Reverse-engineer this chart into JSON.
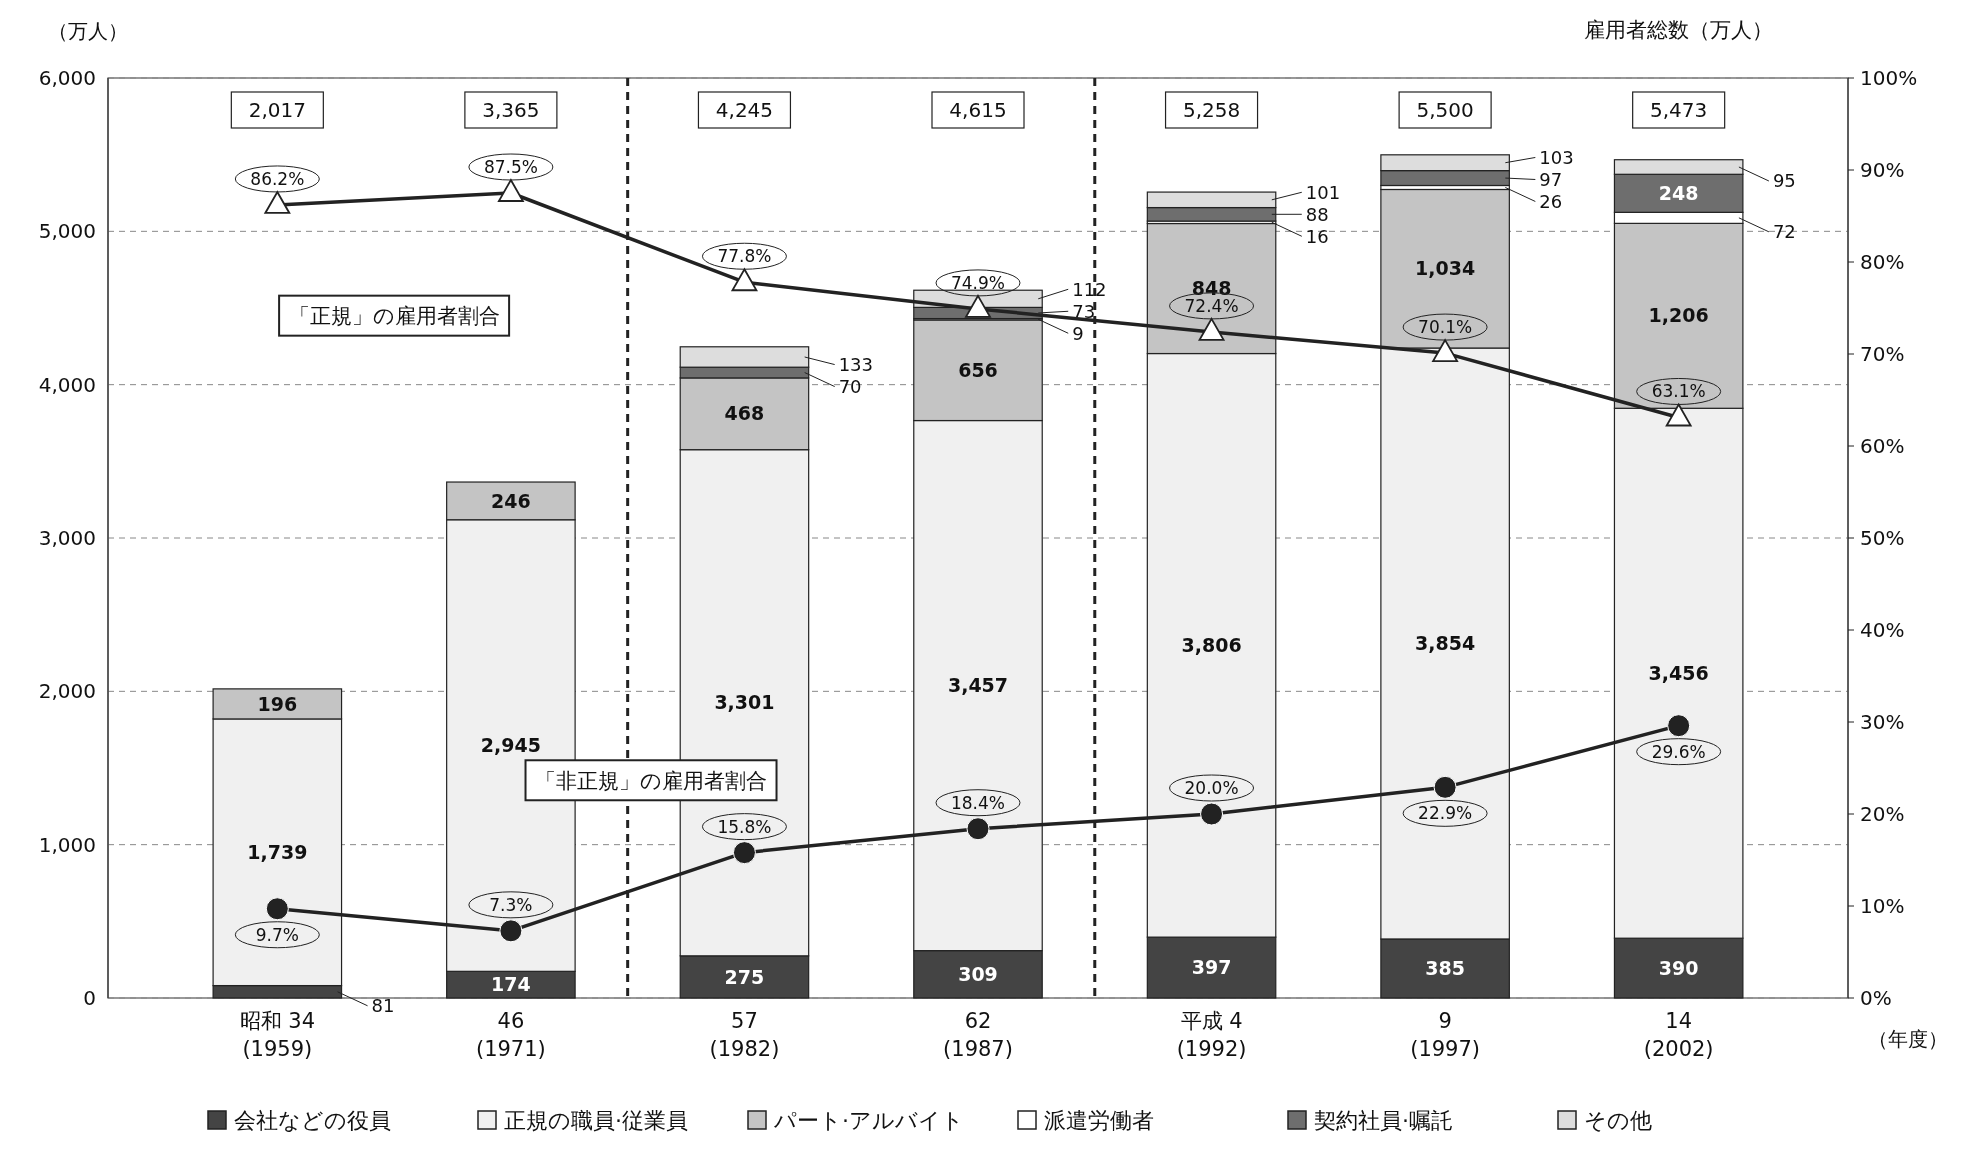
{
  "chart_data": {
    "type": "bar",
    "stacked": true,
    "categories": [
      "昭和 34\n(1959)",
      "46\n(1971)",
      "57\n(1982)",
      "62\n(1987)",
      "平成 4\n(1992)",
      "9\n(1997)",
      "14\n(2002)"
    ],
    "series": [
      {
        "name": "会社などの役員",
        "color": "#444444",
        "values": [
          81,
          174,
          275,
          309,
          397,
          385,
          390
        ],
        "value_labels": [
          "81",
          "174",
          "275",
          "309",
          "397",
          "385",
          "390"
        ]
      },
      {
        "name": "正規の職員·従業員",
        "color": "#f0f0f0",
        "values": [
          1739,
          2945,
          3301,
          3457,
          3806,
          3854,
          3456
        ],
        "value_labels": [
          "1,739",
          "2,945",
          "3,301",
          "3,457",
          "3,806",
          "3,854",
          "3,456"
        ]
      },
      {
        "name": "パート·アルバイト",
        "color": "#c4c4c4",
        "values": [
          196,
          246,
          468,
          656,
          848,
          1034,
          1206
        ],
        "value_labels": [
          "196",
          "246",
          "468",
          "656",
          "848",
          "1,034",
          "1,206"
        ]
      },
      {
        "name": "派遣労働者",
        "color": "#ffffff",
        "values": [
          null,
          null,
          null,
          9,
          16,
          26,
          72
        ],
        "value_labels": [
          null,
          null,
          null,
          "9",
          "16",
          "26",
          "72"
        ]
      },
      {
        "name": "契約社員·嘱託",
        "color": "#6e6e6e",
        "values": [
          null,
          null,
          70,
          73,
          88,
          97,
          248
        ],
        "value_labels": [
          null,
          null,
          "70",
          "73",
          "88",
          "97",
          "248"
        ]
      },
      {
        "name": "その他",
        "color": "#dddddd",
        "values": [
          null,
          null,
          133,
          112,
          101,
          103,
          95
        ],
        "value_labels": [
          null,
          null,
          "133",
          "112",
          "101",
          "103",
          "95"
        ]
      },
      {
        "type": "line",
        "axis": "y2",
        "color": "#222222",
        "marker": "triangle",
        "values": [
          86.2,
          87.5,
          77.8,
          74.9,
          72.4,
          70.1,
          63.1
        ],
        "value_labels": [
          "86.2%",
          "87.5%",
          "77.8%",
          "74.9%",
          "72.4%",
          "70.1%",
          "63.1%"
        ]
      },
      {
        "type": "line",
        "axis": "y2",
        "color": "#222222",
        "marker": "circle",
        "values": [
          9.7,
          7.3,
          15.8,
          18.4,
          20.0,
          22.9,
          29.6
        ],
        "value_labels": [
          "9.7%",
          "7.3%",
          "15.8%",
          "18.4%",
          "20.0%",
          "22.9%",
          "29.6%"
        ]
      }
    ],
    "ylabel": "（万人）",
    "xlabel": "（年度）",
    "ylim": [
      0,
      6000
    ],
    "yticks": [
      0,
      {
        "value": 1000,
        "label": "1,000"
      },
      {
        "value": 2000,
        "label": "2,000"
      },
      {
        "value": 3000,
        "label": "3,000"
      },
      {
        "value": 4000,
        "label": "4,000"
      },
      {
        "value": 5000,
        "label": "5,000"
      },
      {
        "value": 6000,
        "label": "6,000"
      }
    ],
    "y2lim": [
      0,
      100
    ],
    "y2ticks": [
      {
        "value": 0,
        "label": "0%"
      },
      {
        "value": 10,
        "label": "10%"
      },
      {
        "value": 20,
        "label": "20%"
      },
      {
        "value": 30,
        "label": "30%"
      },
      {
        "value": 40,
        "label": "40%"
      },
      {
        "value": 50,
        "label": "50%"
      },
      {
        "value": 60,
        "label": "60%"
      },
      {
        "value": 70,
        "label": "70%"
      },
      {
        "value": 80,
        "label": "80%"
      },
      {
        "value": 90,
        "label": "90%"
      },
      {
        "value": 100,
        "label": "100%"
      }
    ],
    "grid": "y",
    "legend": "bottom",
    "line_style": "solid",
    "annotations": [
      "「正規」の雇用者割合",
      "「非正規」の雇用者割合",
      "雇用者総数（万人）",
      "2,017",
      "3,365",
      "4,245",
      "4,615",
      "5,258",
      "5,500",
      "5,473"
    ]
  }
}
